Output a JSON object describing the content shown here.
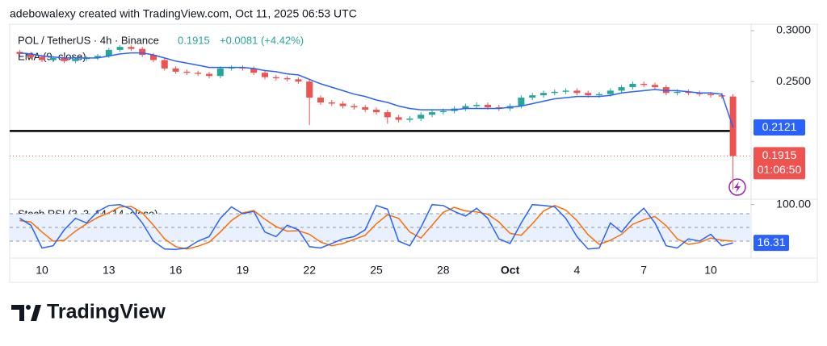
{
  "attribution": "adebowalexy created with TradingView.com, Oct 11, 2025 06:53 UTC",
  "brand": "TradingView",
  "chart_data": [
    {
      "type": "candlestick",
      "title": "POL / TetherUS · 4h · Binance",
      "last_price": "0.1915",
      "change": "+0.0081 (+4.42%)",
      "countdown": "01:06:50",
      "categories": [
        null,
        null,
        "10",
        null,
        null,
        null,
        null,
        null,
        "13",
        null,
        null,
        null,
        null,
        null,
        "16",
        null,
        null,
        null,
        null,
        null,
        "19",
        null,
        null,
        null,
        null,
        null,
        "22",
        null,
        null,
        null,
        null,
        null,
        "25",
        null,
        null,
        null,
        null,
        null,
        "28",
        null,
        null,
        null,
        null,
        null,
        "Oct",
        null,
        null,
        null,
        null,
        null,
        "4",
        null,
        null,
        null,
        null,
        null,
        "7",
        null,
        null,
        null,
        null,
        null,
        "10",
        null,
        null
      ],
      "open": [
        0.278,
        0.276,
        0.273,
        0.27,
        0.272,
        0.269,
        0.271,
        0.272,
        0.274,
        0.28,
        0.283,
        0.281,
        0.275,
        0.27,
        0.262,
        0.259,
        0.258,
        0.257,
        0.255,
        0.262,
        0.263,
        0.262,
        0.258,
        0.254,
        0.253,
        0.252,
        0.25,
        0.236,
        0.232,
        0.231,
        0.229,
        0.228,
        0.226,
        0.224,
        0.22,
        0.218,
        0.219,
        0.222,
        0.224,
        0.225,
        0.227,
        0.229,
        0.23,
        0.228,
        0.227,
        0.229,
        0.236,
        0.238,
        0.24,
        0.241,
        0.242,
        0.24,
        0.238,
        0.239,
        0.242,
        0.245,
        0.248,
        0.247,
        0.245,
        0.24,
        0.241,
        0.24,
        0.239,
        0.238,
        0.237
      ],
      "high": [
        0.28,
        0.278,
        0.275,
        0.274,
        0.274,
        0.273,
        0.274,
        0.276,
        0.282,
        0.285,
        0.285,
        0.283,
        0.277,
        0.272,
        0.264,
        0.261,
        0.26,
        0.259,
        0.264,
        0.265,
        0.265,
        0.264,
        0.26,
        0.256,
        0.255,
        0.254,
        0.252,
        0.238,
        0.234,
        0.233,
        0.231,
        0.23,
        0.228,
        0.226,
        0.222,
        0.221,
        0.224,
        0.226,
        0.227,
        0.229,
        0.231,
        0.232,
        0.232,
        0.23,
        0.231,
        0.238,
        0.24,
        0.242,
        0.243,
        0.244,
        0.244,
        0.242,
        0.241,
        0.244,
        0.247,
        0.25,
        0.25,
        0.249,
        0.247,
        0.243,
        0.243,
        0.242,
        0.241,
        0.24,
        0.239
      ],
      "low": [
        0.274,
        0.271,
        0.268,
        0.268,
        0.267,
        0.267,
        0.269,
        0.27,
        0.272,
        0.278,
        0.279,
        0.273,
        0.268,
        0.26,
        0.257,
        0.256,
        0.255,
        0.253,
        0.253,
        0.26,
        0.26,
        0.256,
        0.252,
        0.251,
        0.25,
        0.248,
        0.214,
        0.23,
        0.229,
        0.227,
        0.226,
        0.224,
        0.222,
        0.215,
        0.216,
        0.216,
        0.217,
        0.22,
        0.222,
        0.223,
        0.225,
        0.227,
        0.226,
        0.225,
        0.225,
        0.227,
        0.234,
        0.236,
        0.238,
        0.239,
        0.238,
        0.236,
        0.236,
        0.237,
        0.24,
        0.243,
        0.245,
        0.243,
        0.238,
        0.238,
        0.238,
        0.237,
        0.236,
        0.235,
        0.17
      ],
      "close": [
        0.276,
        0.273,
        0.27,
        0.272,
        0.269,
        0.271,
        0.272,
        0.274,
        0.28,
        0.283,
        0.281,
        0.275,
        0.27,
        0.262,
        0.259,
        0.258,
        0.257,
        0.255,
        0.262,
        0.263,
        0.262,
        0.258,
        0.254,
        0.253,
        0.252,
        0.25,
        0.236,
        0.232,
        0.231,
        0.229,
        0.228,
        0.226,
        0.224,
        0.22,
        0.218,
        0.219,
        0.222,
        0.224,
        0.225,
        0.227,
        0.229,
        0.23,
        0.228,
        0.227,
        0.229,
        0.236,
        0.238,
        0.24,
        0.241,
        0.242,
        0.24,
        0.238,
        0.239,
        0.242,
        0.245,
        0.248,
        0.247,
        0.245,
        0.24,
        0.241,
        0.24,
        0.239,
        0.238,
        0.237,
        0.1915
      ],
      "up_color": "#26a69a",
      "down_color": "#ef5350",
      "series": [
        {
          "name": "EMA (9, close)",
          "color": "#2962ff",
          "values": [
            0.277,
            0.276,
            0.274,
            0.273,
            0.272,
            0.272,
            0.272,
            0.272,
            0.274,
            0.276,
            0.277,
            0.277,
            0.275,
            0.272,
            0.269,
            0.267,
            0.265,
            0.263,
            0.263,
            0.263,
            0.263,
            0.262,
            0.26,
            0.259,
            0.257,
            0.256,
            0.252,
            0.248,
            0.245,
            0.242,
            0.239,
            0.237,
            0.234,
            0.232,
            0.229,
            0.227,
            0.226,
            0.226,
            0.226,
            0.226,
            0.227,
            0.227,
            0.227,
            0.227,
            0.228,
            0.229,
            0.231,
            0.233,
            0.235,
            0.236,
            0.237,
            0.237,
            0.237,
            0.238,
            0.24,
            0.241,
            0.242,
            0.243,
            0.242,
            0.242,
            0.241,
            0.24,
            0.24,
            0.239,
            0.2121
          ]
        }
      ],
      "log_scale": true,
      "ylim": [
        0.165,
        0.307
      ],
      "yticks": [
        {
          "value": 0.3,
          "label": "0.3000"
        },
        {
          "value": 0.25,
          "label": "0.2500"
        }
      ],
      "horizontal_line": 0.2095,
      "horizontal_line_color": "#000000"
    },
    {
      "type": "line",
      "title": "Stoch RSI (3, 3, 14, 14, close)",
      "series": [
        {
          "color": "#2962ff",
          "values": [
            70,
            55,
            5,
            10,
            45,
            70,
            60,
            85,
            98,
            100,
            90,
            60,
            20,
            3,
            2,
            5,
            20,
            30,
            70,
            95,
            80,
            85,
            40,
            30,
            55,
            45,
            8,
            5,
            15,
            25,
            30,
            45,
            98,
            90,
            20,
            10,
            50,
            100,
            98,
            85,
            75,
            92,
            70,
            25,
            15,
            60,
            100,
            98,
            95,
            70,
            30,
            3,
            5,
            60,
            40,
            70,
            92,
            60,
            10,
            5,
            25,
            20,
            35,
            10,
            16.31
          ]
        },
        {
          "color": "#ff6d00",
          "values": [
            65,
            62,
            40,
            20,
            22,
            42,
            58,
            72,
            82,
            95,
            96,
            82,
            55,
            25,
            8,
            3,
            9,
            18,
            40,
            65,
            82,
            87,
            68,
            52,
            42,
            43,
            35,
            18,
            10,
            15,
            24,
            33,
            58,
            78,
            70,
            40,
            27,
            55,
            83,
            94,
            86,
            84,
            79,
            62,
            37,
            33,
            58,
            86,
            98,
            88,
            65,
            34,
            13,
            22,
            35,
            57,
            67,
            74,
            54,
            25,
            13,
            17,
            27,
            22,
            20
          ]
        }
      ],
      "ylim": [
        -17,
        106.5
      ],
      "yticks": [
        {
          "value": 100,
          "label": "100.00"
        }
      ],
      "bands": [
        80,
        50,
        20
      ],
      "band_fill": "#e8f1fd"
    }
  ]
}
